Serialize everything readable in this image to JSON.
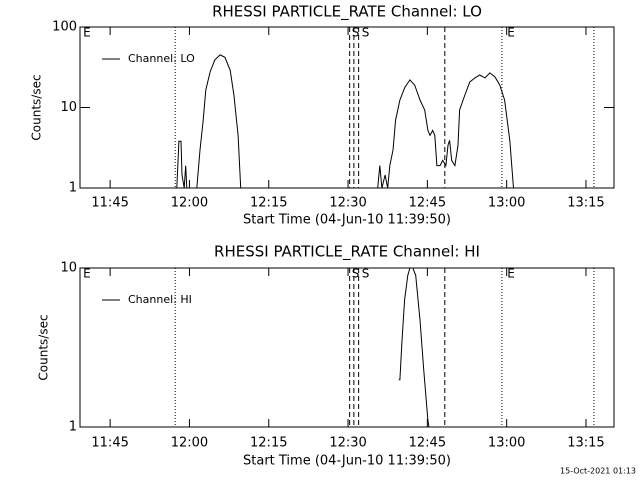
{
  "footer": "15-Oct-2021 01:13",
  "chart_data": [
    {
      "type": "line",
      "title": "RHESSI PARTICLE_RATE Channel: LO",
      "xlabel": "Start Time (04-Jun-10 11:39:50)",
      "ylabel": "Counts/sec",
      "yscale": "log",
      "legend": "upper left",
      "xlim": [
        699.3,
        800.3
      ],
      "ylim": [
        1,
        100
      ],
      "xticks": [
        {
          "value": 705,
          "label": "11:45"
        },
        {
          "value": 720,
          "label": "12:00"
        },
        {
          "value": 735,
          "label": "12:15"
        },
        {
          "value": 750,
          "label": "12:30"
        },
        {
          "value": 765,
          "label": "12:45"
        },
        {
          "value": 780,
          "label": "13:00"
        },
        {
          "value": 795,
          "label": "13:15"
        }
      ],
      "yticks": [
        1,
        10,
        100
      ],
      "vlines": [
        {
          "x": 717.3,
          "style": "dotted"
        },
        {
          "x": 750.3,
          "style": "dashed"
        },
        {
          "x": 751.1,
          "style": "dashed"
        },
        {
          "x": 752.0,
          "style": "dashed"
        },
        {
          "x": 768.3,
          "style": "dashed"
        },
        {
          "x": 779.1,
          "style": "dotted"
        },
        {
          "x": 796.5,
          "style": "dotted"
        }
      ],
      "annotations": [
        {
          "x": 699.9,
          "text": "E"
        },
        {
          "x": 750.7,
          "text": "S"
        },
        {
          "x": 752.6,
          "text": "S"
        },
        {
          "x": 780.1,
          "text": "E"
        }
      ],
      "series": [
        {
          "name": "Channel: LO",
          "color": "#000000",
          "x": [
            717.6,
            718.0,
            718.4,
            718.6,
            719.0,
            719.3,
            719.5,
            720.5,
            721.4,
            722.0,
            722.6,
            723.1,
            723.9,
            724.8,
            725.8,
            726.7,
            727.7,
            728.4,
            729.2,
            729.7,
            740.0,
            755.6,
            756.0,
            756.4,
            757.0,
            757.5,
            757.9,
            758.5,
            759.0,
            759.8,
            760.7,
            761.7,
            762.6,
            763.6,
            764.5,
            765.1,
            765.5,
            766.0,
            766.4,
            766.8,
            767.4,
            767.9,
            768.5,
            768.9,
            769.2,
            769.6,
            770.2,
            770.8,
            771.1,
            772.1,
            773.0,
            774.0,
            774.9,
            775.9,
            776.8,
            777.8,
            778.7,
            779.6,
            780.6,
            781.3
          ],
          "values": [
            1,
            3.8,
            3.8,
            1.45,
            1,
            1.9,
            1,
            null,
            1,
            2.96,
            7.0,
            16.5,
            27.6,
            39,
            45,
            42,
            29,
            14.3,
            4.5,
            1,
            null,
            1,
            1.9,
            1,
            1.45,
            1,
            1.9,
            2.96,
            7.0,
            12.4,
            17.5,
            22,
            19,
            12.4,
            9.3,
            5.2,
            4.5,
            5.2,
            4.5,
            1.9,
            1.9,
            2.2,
            1.9,
            3.4,
            3.9,
            2.2,
            1.9,
            3.4,
            9.3,
            14.3,
            20.7,
            23.3,
            25.3,
            23.3,
            26.9,
            23.9,
            19,
            12.4,
            3.9,
            1
          ]
        }
      ]
    },
    {
      "type": "line",
      "title": "RHESSI PARTICLE_RATE Channel: HI",
      "xlabel": "Start Time (04-Jun-10 11:39:50)",
      "ylabel": "Counts/sec",
      "yscale": "log",
      "legend": "upper left",
      "xlim": [
        699.3,
        800.3
      ],
      "ylim": [
        1,
        10
      ],
      "xticks": [
        {
          "value": 705,
          "label": "11:45"
        },
        {
          "value": 720,
          "label": "12:00"
        },
        {
          "value": 735,
          "label": "12:15"
        },
        {
          "value": 750,
          "label": "12:30"
        },
        {
          "value": 765,
          "label": "12:45"
        },
        {
          "value": 780,
          "label": "13:00"
        },
        {
          "value": 795,
          "label": "13:15"
        }
      ],
      "yticks": [
        1,
        10
      ],
      "vlines": [
        {
          "x": 717.3,
          "style": "dotted"
        },
        {
          "x": 750.3,
          "style": "dashed"
        },
        {
          "x": 751.1,
          "style": "dashed"
        },
        {
          "x": 752.0,
          "style": "dashed"
        },
        {
          "x": 768.3,
          "style": "dashed"
        },
        {
          "x": 779.1,
          "style": "dotted"
        },
        {
          "x": 796.5,
          "style": "dotted"
        }
      ],
      "annotations": [
        {
          "x": 699.9,
          "text": "E"
        },
        {
          "x": 750.7,
          "text": "S"
        },
        {
          "x": 752.6,
          "text": "S"
        },
        {
          "x": 780.1,
          "text": "E"
        }
      ],
      "series": [
        {
          "name": "Channel: HI",
          "color": "#000000",
          "x": [
            759.6,
            759.8,
            760.2,
            760.7,
            761.3,
            761.7,
            762.1,
            762.4,
            762.8,
            763.6,
            764.3,
            765.1,
            765.3
          ],
          "values": [
            1.98,
            1.98,
            3.5,
            6.3,
            9.0,
            10.0,
            10.4,
            9.7,
            9.0,
            4.7,
            2.3,
            1.1,
            1.0
          ]
        }
      ]
    }
  ]
}
